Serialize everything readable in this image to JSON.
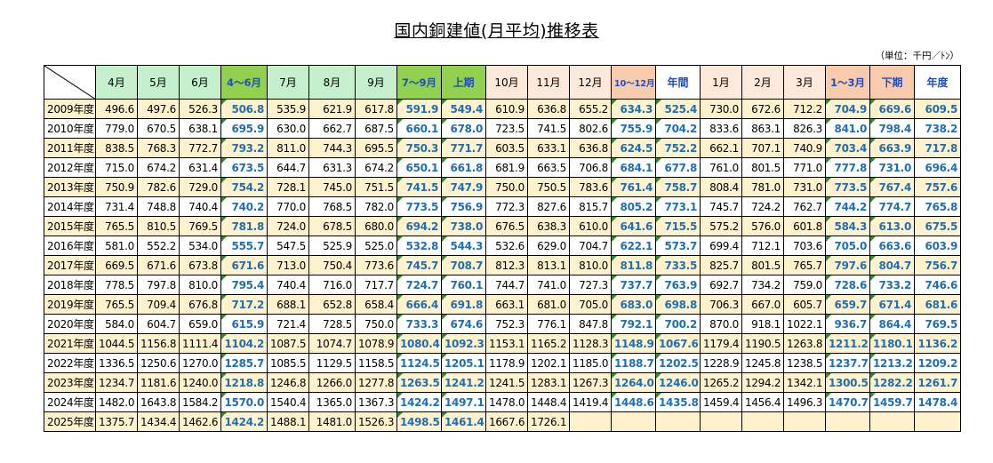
{
  "title": "国内銅建値(月平均)推移表",
  "unit": "（単位：千円／ﾄﾝ）",
  "headers": [
    "4月",
    "5月",
    "6月",
    "4～6月",
    "7月",
    "8月",
    "9月",
    "7～9月",
    "上期",
    "10月",
    "11月",
    "12月",
    "10～12月",
    "年間",
    "1月",
    "2月",
    "3月",
    "1～3月",
    "下期",
    "年度"
  ],
  "rows": [
    {
      "year": "2009年度",
      "values": [
        "496.6",
        "497.6",
        "526.3",
        "506.8",
        "535.9",
        "621.9",
        "617.8",
        "591.9",
        "549.4",
        "610.9",
        "636.8",
        "655.2",
        "634.3",
        "525.4",
        "730.0",
        "672.6",
        "712.2",
        "704.9",
        "669.6",
        "609.5"
      ]
    },
    {
      "year": "2010年度",
      "values": [
        "779.0",
        "670.5",
        "638.1",
        "695.9",
        "630.0",
        "662.7",
        "687.5",
        "660.1",
        "678.0",
        "723.5",
        "741.5",
        "802.6",
        "755.9",
        "704.2",
        "833.6",
        "863.1",
        "826.3",
        "841.0",
        "798.4",
        "738.2"
      ]
    },
    {
      "year": "2011年度",
      "values": [
        "838.5",
        "768.3",
        "772.7",
        "793.2",
        "811.0",
        "744.3",
        "695.5",
        "750.3",
        "771.7",
        "603.5",
        "633.1",
        "636.8",
        "624.5",
        "752.2",
        "662.1",
        "707.1",
        "740.9",
        "703.4",
        "663.9",
        "717.8"
      ]
    },
    {
      "year": "2012年度",
      "values": [
        "715.0",
        "674.2",
        "631.4",
        "673.5",
        "644.7",
        "631.3",
        "674.2",
        "650.1",
        "661.8",
        "681.9",
        "663.5",
        "706.8",
        "684.1",
        "677.8",
        "761.0",
        "801.5",
        "771.0",
        "777.8",
        "731.0",
        "696.4"
      ]
    },
    {
      "year": "2013年度",
      "values": [
        "750.9",
        "782.6",
        "729.0",
        "754.2",
        "728.1",
        "745.0",
        "751.5",
        "741.5",
        "747.9",
        "750.0",
        "750.5",
        "783.6",
        "761.4",
        "758.7",
        "808.4",
        "781.0",
        "731.0",
        "773.5",
        "767.4",
        "757.6"
      ]
    },
    {
      "year": "2014年度",
      "values": [
        "731.4",
        "748.8",
        "740.4",
        "740.2",
        "770.0",
        "768.5",
        "782.0",
        "773.5",
        "756.9",
        "772.3",
        "827.6",
        "815.7",
        "805.2",
        "773.1",
        "745.7",
        "724.2",
        "762.7",
        "744.2",
        "774.7",
        "765.8"
      ]
    },
    {
      "year": "2015年度",
      "values": [
        "765.5",
        "810.5",
        "769.5",
        "781.8",
        "724.0",
        "678.5",
        "680.0",
        "694.2",
        "738.0",
        "676.5",
        "638.3",
        "610.0",
        "641.6",
        "715.5",
        "575.2",
        "576.0",
        "601.8",
        "584.3",
        "613.0",
        "675.5"
      ]
    },
    {
      "year": "2016年度",
      "values": [
        "581.0",
        "552.2",
        "534.0",
        "555.7",
        "547.5",
        "525.9",
        "525.0",
        "532.8",
        "544.3",
        "532.6",
        "629.0",
        "704.7",
        "622.1",
        "573.7",
        "699.4",
        "712.1",
        "703.6",
        "705.0",
        "663.6",
        "603.9"
      ]
    },
    {
      "year": "2017年度",
      "values": [
        "669.5",
        "671.6",
        "673.8",
        "671.6",
        "713.0",
        "750.4",
        "773.6",
        "745.7",
        "708.7",
        "812.3",
        "813.1",
        "810.0",
        "811.8",
        "733.5",
        "825.7",
        "801.5",
        "765.7",
        "797.6",
        "804.7",
        "756.7"
      ]
    },
    {
      "year": "2018年度",
      "values": [
        "778.5",
        "797.8",
        "810.0",
        "795.4",
        "740.4",
        "716.0",
        "717.7",
        "724.7",
        "760.1",
        "744.7",
        "741.0",
        "727.3",
        "737.7",
        "763.9",
        "692.7",
        "734.2",
        "759.0",
        "728.6",
        "733.2",
        "746.6"
      ]
    },
    {
      "year": "2019年度",
      "values": [
        "765.5",
        "709.4",
        "676.8",
        "717.2",
        "688.1",
        "652.8",
        "658.4",
        "666.4",
        "691.8",
        "663.1",
        "681.0",
        "705.0",
        "683.0",
        "698.8",
        "706.3",
        "667.0",
        "605.7",
        "659.7",
        "671.4",
        "681.6"
      ]
    },
    {
      "year": "2020年度",
      "values": [
        "584.0",
        "604.7",
        "659.0",
        "615.9",
        "721.4",
        "728.5",
        "750.0",
        "733.3",
        "674.6",
        "752.3",
        "776.1",
        "847.8",
        "792.1",
        "700.2",
        "870.0",
        "918.1",
        "1022.1",
        "936.7",
        "864.4",
        "769.5"
      ]
    },
    {
      "year": "2021年度",
      "values": [
        "1044.5",
        "1156.8",
        "1111.4",
        "1104.2",
        "1087.5",
        "1074.7",
        "1078.9",
        "1080.4",
        "1092.3",
        "1153.1",
        "1165.2",
        "1128.3",
        "1148.9",
        "1067.6",
        "1179.4",
        "1190.5",
        "1263.8",
        "1211.2",
        "1180.1",
        "1136.2"
      ]
    },
    {
      "year": "2022年度",
      "values": [
        "1336.5",
        "1250.6",
        "1270.0",
        "1285.7",
        "1085.5",
        "1129.5",
        "1158.5",
        "1124.5",
        "1205.1",
        "1178.9",
        "1202.1",
        "1185.0",
        "1188.7",
        "1202.5",
        "1228.9",
        "1245.8",
        "1238.5",
        "1237.7",
        "1213.2",
        "1209.2"
      ]
    },
    {
      "year": "2023年度",
      "values": [
        "1234.7",
        "1181.6",
        "1240.0",
        "1218.8",
        "1246.8",
        "1266.0",
        "1277.8",
        "1263.5",
        "1241.2",
        "1241.5",
        "1283.1",
        "1267.3",
        "1264.0",
        "1246.0",
        "1265.2",
        "1294.2",
        "1342.1",
        "1300.5",
        "1282.2",
        "1261.7"
      ]
    },
    {
      "year": "2024年度",
      "values": [
        "1482.0",
        "1643.8",
        "1584.2",
        "1570.0",
        "1540.4",
        "1365.0",
        "1367.3",
        "1424.2",
        "1497.1",
        "1478.0",
        "1448.4",
        "1419.4",
        "1448.6",
        "1435.8",
        "1459.4",
        "1456.4",
        "1496.3",
        "1470.7",
        "1459.7",
        "1478.4"
      ]
    },
    {
      "year": "2025年度",
      "values": [
        "1375.7",
        "1434.4",
        "1462.6",
        "1424.2",
        "1488.1",
        "1481.0",
        "1526.3",
        "1498.5",
        "1461.4",
        "1667.6",
        "1726.1",
        "",
        "",
        "",
        "",
        "",
        "",
        "",
        "",
        ""
      ]
    }
  ]
}
